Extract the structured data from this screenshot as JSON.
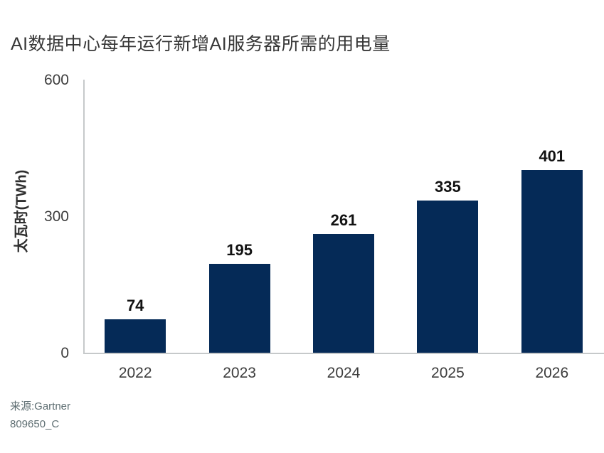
{
  "title": "AI数据中心每年运行新增AI服务器所需的用电量",
  "source": {
    "line1": "来源:Gartner",
    "line2": "809650_C"
  },
  "chart_data": {
    "type": "bar",
    "title": "AI数据中心每年运行新增AI服务器所需的用电量",
    "categories": [
      "2022",
      "2023",
      "2024",
      "2025",
      "2026"
    ],
    "values": [
      74,
      195,
      261,
      335,
      401
    ],
    "xlabel": "",
    "ylabel": "太瓦时(TWh)",
    "ylim": [
      0,
      600
    ],
    "yticks": [
      0,
      300,
      600
    ],
    "grid": false,
    "legend_position": "none",
    "bar_color": "#052a57",
    "axis_color": "#c6c9ca",
    "value_label_color": "#121212",
    "source": "来源:Gartner",
    "footnote": "809650_C"
  }
}
